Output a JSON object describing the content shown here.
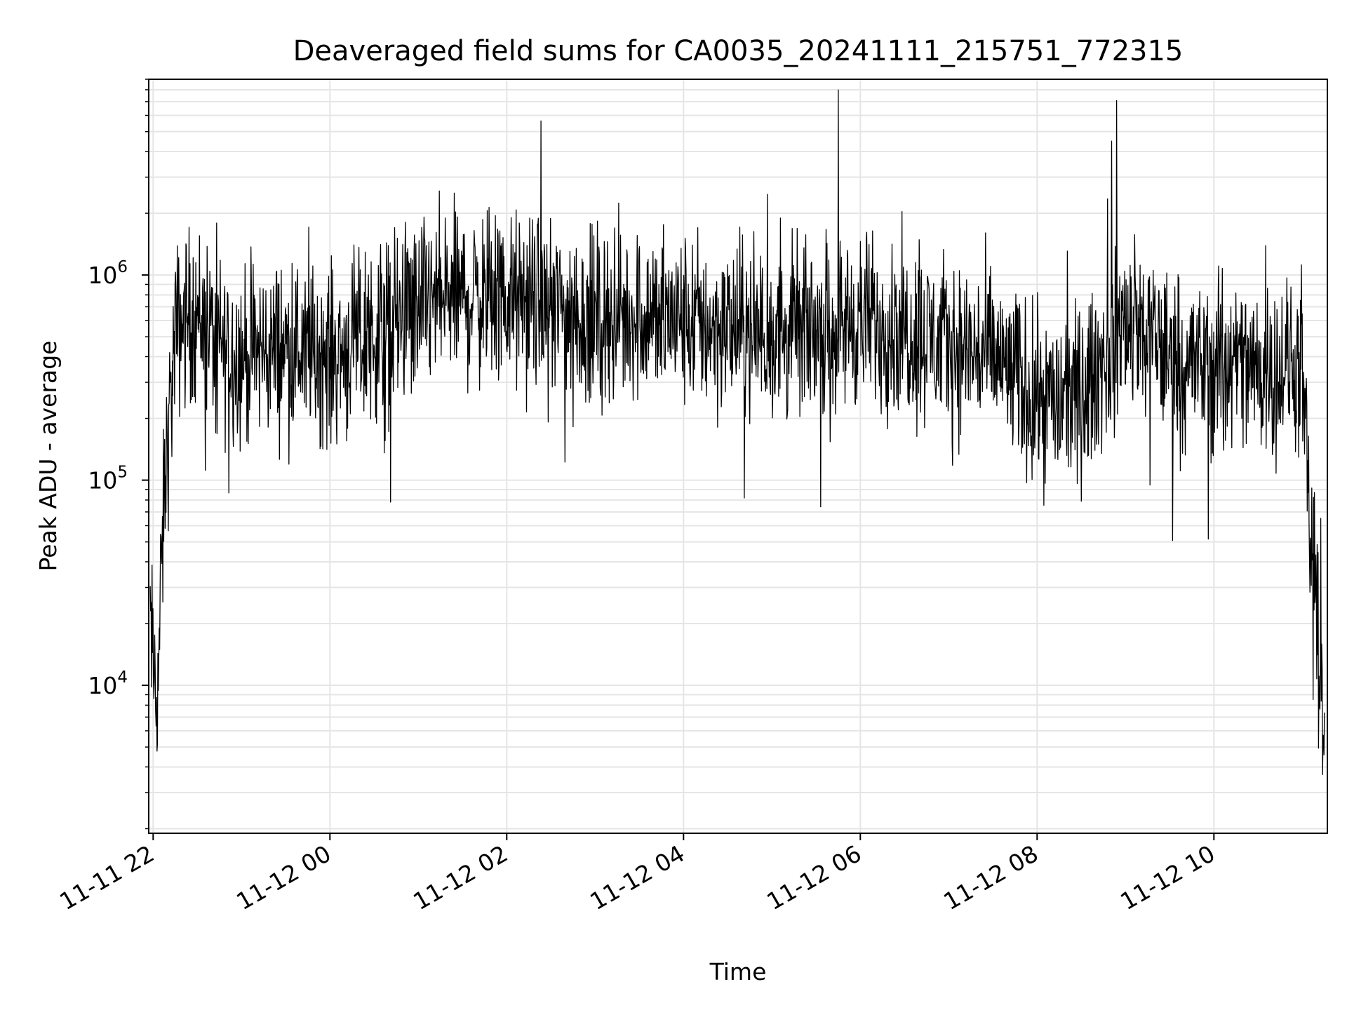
{
  "chart_data": {
    "type": "line",
    "title": "Deaveraged field sums for CA0035_20241111_215751_772315",
    "xlabel": "Time",
    "ylabel": "Peak ADU - average",
    "yscale": "log",
    "ylim": [
      1900,
      9000000
    ],
    "xlim": [
      "2024-11-11 21:57",
      "2024-11-12 11:17"
    ],
    "x_ticks": [
      "11-11 22",
      "11-12 00",
      "11-12 02",
      "11-12 04",
      "11-12 06",
      "11-12 08",
      "11-12 10"
    ],
    "x_tick_times": [
      "2024-11-11 22:00",
      "2024-11-12 00:00",
      "2024-11-12 02:00",
      "2024-11-12 04:00",
      "2024-11-12 06:00",
      "2024-11-12 08:00",
      "2024-11-12 10:00"
    ],
    "y_ticks": [
      {
        "base": "10",
        "exp": "4",
        "value": 10000
      },
      {
        "base": "10",
        "exp": "5",
        "value": 100000
      },
      {
        "base": "10",
        "exp": "6",
        "value": 1000000
      }
    ],
    "grid": true,
    "line_color": "#000000",
    "series": [
      {
        "x": [
          "2024-11-11 21:58",
          "2024-11-11 22:00",
          "2024-11-11 22:03",
          "2024-11-11 22:05",
          "2024-11-11 22:08",
          "2024-11-11 22:12",
          "2024-11-11 22:15",
          "2024-11-11 22:20",
          "2024-11-11 22:30",
          "2024-11-11 22:45",
          "2024-11-11 23:00",
          "2024-11-11 23:30",
          "2024-11-12 00:00",
          "2024-11-12 00:30",
          "2024-11-12 01:00",
          "2024-11-12 01:30",
          "2024-11-12 02:00",
          "2024-11-12 02:30",
          "2024-11-12 03:00",
          "2024-11-12 03:30",
          "2024-11-12 04:00",
          "2024-11-12 04:30",
          "2024-11-12 05:00",
          "2024-11-12 05:30",
          "2024-11-12 06:00",
          "2024-11-12 06:30",
          "2024-11-12 07:00",
          "2024-11-12 07:30",
          "2024-11-12 08:00",
          "2024-11-12 08:30",
          "2024-11-12 09:00",
          "2024-11-12 09:30",
          "2024-11-12 10:00",
          "2024-11-12 10:30",
          "2024-11-12 11:00",
          "2024-11-12 11:05",
          "2024-11-12 11:10",
          "2024-11-12 11:15"
        ],
        "y": [
          20000,
          12000,
          9000,
          25000,
          100000,
          250000,
          500000,
          600000,
          650000,
          450000,
          400000,
          450000,
          400000,
          500000,
          700000,
          800000,
          750000,
          700000,
          600000,
          650000,
          600000,
          550000,
          500000,
          550000,
          600000,
          550000,
          450000,
          400000,
          250000,
          250000,
          600000,
          400000,
          350000,
          350000,
          350000,
          60000,
          20000,
          7000
        ]
      }
    ]
  }
}
